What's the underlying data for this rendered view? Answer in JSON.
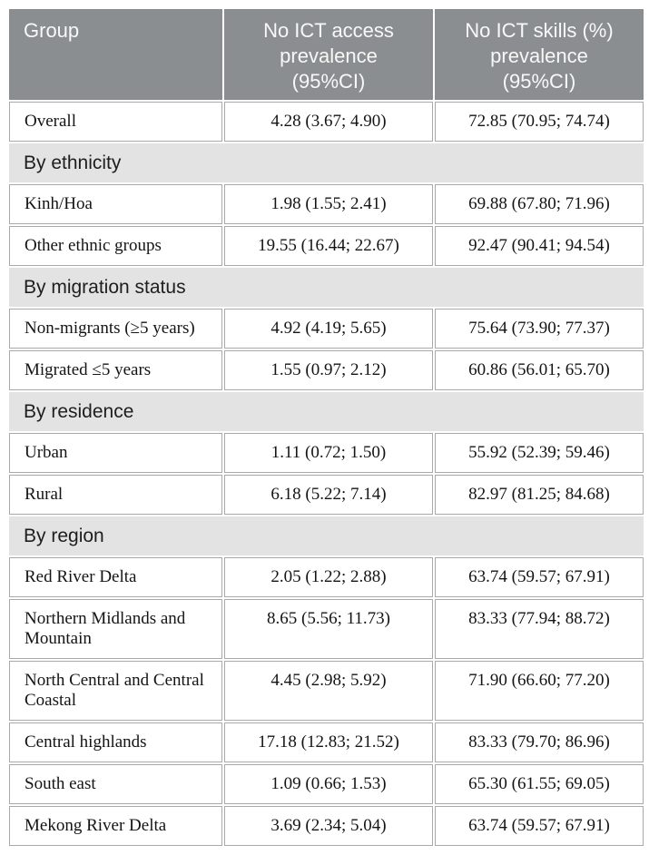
{
  "table": {
    "title_semantic": "Prevalence of no ICT access and no ICT skills by group",
    "header": {
      "group": "Group",
      "access": "No ICT access\nprevalence\n(95%CI)",
      "skills": "No ICT skills (%)\nprevalence\n(95%CI)"
    },
    "rows": [
      {
        "type": "data",
        "group": "Overall",
        "access": "4.28 (3.67; 4.90)",
        "skills": "72.85 (70.95; 74.74)"
      },
      {
        "type": "section",
        "label": "By ethnicity"
      },
      {
        "type": "data",
        "group": "Kinh/Hoa",
        "access": "1.98 (1.55; 2.41)",
        "skills": "69.88 (67.80; 71.96)"
      },
      {
        "type": "data",
        "group": "Other ethnic groups",
        "access": "19.55 (16.44; 22.67)",
        "skills": "92.47 (90.41; 94.54)"
      },
      {
        "type": "section",
        "label": "By migration status"
      },
      {
        "type": "data",
        "group": "Non-migrants (≥5 years)",
        "access": "4.92 (4.19; 5.65)",
        "skills": "75.64 (73.90; 77.37)"
      },
      {
        "type": "data",
        "group": "Migrated ≤5 years",
        "access": "1.55 (0.97; 2.12)",
        "skills": "60.86 (56.01; 65.70)"
      },
      {
        "type": "section",
        "label": "By residence"
      },
      {
        "type": "data",
        "group": "Urban",
        "access": "1.11 (0.72; 1.50)",
        "skills": "55.92 (52.39; 59.46)"
      },
      {
        "type": "data",
        "group": "Rural",
        "access": "6.18 (5.22; 7.14)",
        "skills": "82.97 (81.25; 84.68)"
      },
      {
        "type": "section",
        "label": "By region"
      },
      {
        "type": "data",
        "group": "Red River Delta",
        "access": "2.05 (1.22; 2.88)",
        "skills": "63.74 (59.57; 67.91)"
      },
      {
        "type": "data",
        "group": "Northern Midlands and Mountain",
        "access": "8.65 (5.56; 11.73)",
        "skills": "83.33 (77.94; 88.72)"
      },
      {
        "type": "data",
        "group": "North Central and Central Coastal",
        "access": "4.45 (2.98; 5.92)",
        "skills": "71.90 (66.60; 77.20)"
      },
      {
        "type": "data",
        "group": "Central highlands",
        "access": "17.18 (12.83; 21.52)",
        "skills": "83.33 (79.70; 86.96)"
      },
      {
        "type": "data",
        "group": "South east",
        "access": "1.09 (0.66; 1.53)",
        "skills": "65.30 (61.55; 69.05)"
      },
      {
        "type": "data",
        "group": "Mekong River Delta",
        "access": "3.69 (2.34; 5.04)",
        "skills": "63.74 (59.57; 67.91)"
      }
    ]
  },
  "colors": {
    "header_bg": "#8b8e90",
    "header_text": "#f7f8f8",
    "section_bg": "#e3e3e3",
    "cell_border": "#a7a9ab",
    "body_text": "#141414",
    "page_bg": "#ffffff"
  }
}
